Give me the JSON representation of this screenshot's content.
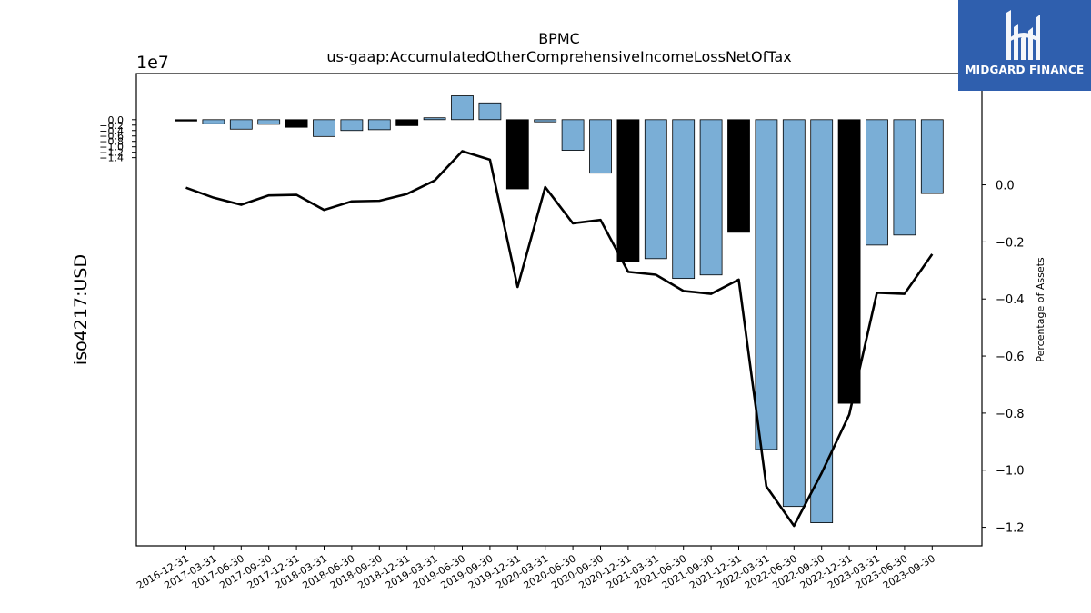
{
  "chart_data": {
    "type": "bar",
    "title": "BPMC",
    "subtitle": "us-gaap:AccumulatedOtherComprehensiveIncomeLossNetOfTax",
    "ylabel": "iso4217:USD",
    "y2label": "Percentage of Assets",
    "y_offset_label": "1e7",
    "ylim": [
      -15.7,
      1.7
    ],
    "y2lim": [
      -1.265,
      0.39
    ],
    "yticks": [
      "0.0",
      "−0.2",
      "−0.4",
      "−0.6",
      "−0.8",
      "−1.0",
      "−1.2",
      "−1.4"
    ],
    "y2ticks": [
      "0.0",
      "−0.2",
      "−0.4",
      "−0.6",
      "−0.8",
      "−1.0",
      "−1.2"
    ],
    "grid": false,
    "categories": [
      "2016-12-31",
      "2017-03-31",
      "2017-06-30",
      "2017-09-30",
      "2017-12-31",
      "2018-03-31",
      "2018-06-30",
      "2018-09-30",
      "2018-12-31",
      "2019-03-31",
      "2019-06-30",
      "2019-09-30",
      "2019-12-31",
      "2020-03-31",
      "2020-06-30",
      "2020-09-30",
      "2020-12-31",
      "2021-03-31",
      "2021-06-30",
      "2021-09-30",
      "2021-12-31",
      "2022-03-31",
      "2022-06-30",
      "2022-09-30",
      "2022-12-31",
      "2023-03-31",
      "2023-06-30",
      "2023-09-30"
    ],
    "series": [
      {
        "type": "bar",
        "unit": "1e7 USD",
        "values": [
          -0.05,
          -0.15,
          -0.35,
          -0.17,
          -0.28,
          -0.62,
          -0.4,
          -0.37,
          -0.22,
          0.07,
          0.88,
          0.62,
          -2.55,
          -0.08,
          -1.13,
          -1.97,
          -5.24,
          -5.12,
          -5.85,
          -5.72,
          -4.15,
          -12.15,
          -14.25,
          -14.85,
          -10.45,
          -4.62,
          -4.25,
          -2.72
        ],
        "colors": [
          "#000000",
          "#7aaed6",
          "#7aaed6",
          "#7aaed6",
          "#000000",
          "#7aaed6",
          "#7aaed6",
          "#7aaed6",
          "#000000",
          "#7aaed6",
          "#7aaed6",
          "#7aaed6",
          "#000000",
          "#7aaed6",
          "#7aaed6",
          "#7aaed6",
          "#000000",
          "#7aaed6",
          "#7aaed6",
          "#7aaed6",
          "#000000",
          "#7aaed6",
          "#7aaed6",
          "#7aaed6",
          "#000000",
          "#7aaed6",
          "#7aaed6",
          "#7aaed6"
        ]
      },
      {
        "type": "line",
        "axis": "right",
        "color": "#000000",
        "values": [
          -0.01,
          -0.045,
          -0.07,
          -0.037,
          -0.035,
          -0.088,
          -0.058,
          -0.056,
          -0.032,
          0.015,
          0.118,
          0.088,
          -0.358,
          -0.008,
          -0.135,
          -0.123,
          -0.305,
          -0.315,
          -0.372,
          -0.382,
          -0.332,
          -1.057,
          -1.195,
          -1.01,
          -0.805,
          -0.378,
          -0.382,
          -0.243
        ]
      }
    ]
  },
  "logo": {
    "text": "MIDGARD FINANCE",
    "background": "#2f5fae"
  }
}
